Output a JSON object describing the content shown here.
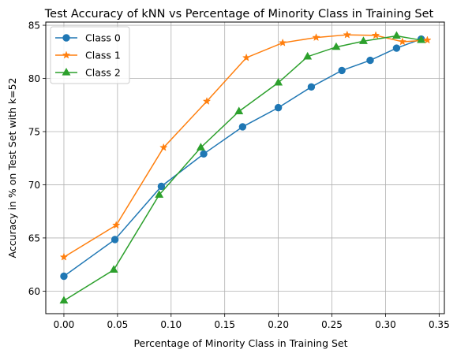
{
  "chart_data": {
    "type": "line",
    "title": "Test Accuracy of kNN vs Percentage of Minority Class in Training Set",
    "xlabel": "Percentage of Minority Class in Training Set",
    "ylabel": "Accuracy in % on Test Set with k=52",
    "xlim": [
      -0.0169,
      0.3549
    ],
    "ylim": [
      57.88,
      85.3
    ],
    "xticks": [
      "0.00",
      "0.05",
      "0.10",
      "0.15",
      "0.20",
      "0.25",
      "0.30",
      "0.35"
    ],
    "xtick_values": [
      0.0,
      0.05,
      0.1,
      0.15,
      0.2,
      0.25,
      0.3,
      0.35
    ],
    "yticks": [
      "60",
      "65",
      "70",
      "75",
      "80",
      "85"
    ],
    "ytick_values": [
      60,
      65,
      70,
      75,
      80,
      85
    ],
    "grid": true,
    "legend": "top-left",
    "series": [
      {
        "name": "Class 0",
        "color": "#1f77b4",
        "marker": "circle",
        "x": [
          0.0,
          0.0476,
          0.0909,
          0.1304,
          0.1667,
          0.2,
          0.2308,
          0.2593,
          0.2857,
          0.3103,
          0.3333
        ],
        "y": [
          61.4,
          64.85,
          69.85,
          72.9,
          75.45,
          77.25,
          79.2,
          80.75,
          81.7,
          82.85,
          83.7
        ]
      },
      {
        "name": "Class 1",
        "color": "#ff7f0e",
        "marker": "star",
        "x": [
          0.0,
          0.0488,
          0.093,
          0.1333,
          0.1702,
          0.2041,
          0.2353,
          0.2642,
          0.2909,
          0.3158,
          0.339
        ],
        "y": [
          63.2,
          66.2,
          73.5,
          77.85,
          81.95,
          83.35,
          83.85,
          84.1,
          84.05,
          83.45,
          83.6
        ]
      },
      {
        "name": "Class 2",
        "color": "#2ca02c",
        "marker": "triangle",
        "x": [
          0.0,
          0.0465,
          0.0889,
          0.1277,
          0.1633,
          0.2,
          0.2273,
          0.254,
          0.2794,
          0.3103,
          0.3333
        ],
        "y": [
          59.1,
          62.0,
          69.05,
          73.5,
          76.9,
          79.6,
          82.05,
          82.95,
          83.5,
          84.0,
          83.6
        ]
      }
    ]
  }
}
